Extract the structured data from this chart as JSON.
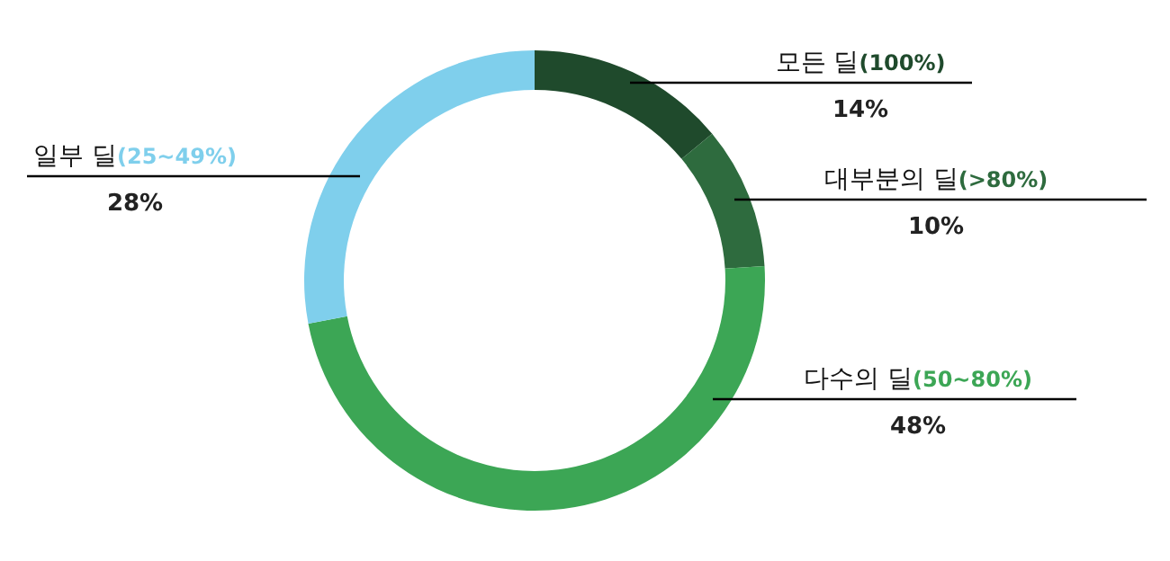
{
  "chart_data": {
    "type": "donut",
    "categories": [
      "모든 딜(100%)",
      "대부분의 딜(>80%)",
      "다수의 딜(50~80%)",
      "일부 딜(25~49%)"
    ],
    "values": [
      14,
      10,
      48,
      28
    ],
    "value_labels": [
      "14%",
      "10%",
      "48%",
      "28%"
    ],
    "colors": [
      "#1f4a2c",
      "#2e6b3e",
      "#3ca655",
      "#7fcfec"
    ]
  }
}
